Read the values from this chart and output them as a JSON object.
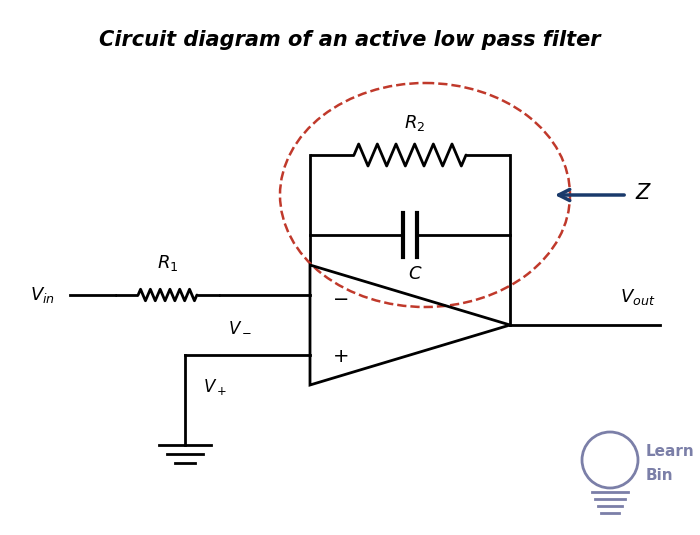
{
  "title": "Circuit diagram of an active low pass filter",
  "title_fontsize": 15,
  "bg_color": "#ffffff",
  "line_color": "#000000",
  "dashed_ellipse_color": "#c0392b",
  "arrow_color": "#1a3a6b",
  "label_color": "#000000",
  "learnbin_color": "#7b7fa8"
}
